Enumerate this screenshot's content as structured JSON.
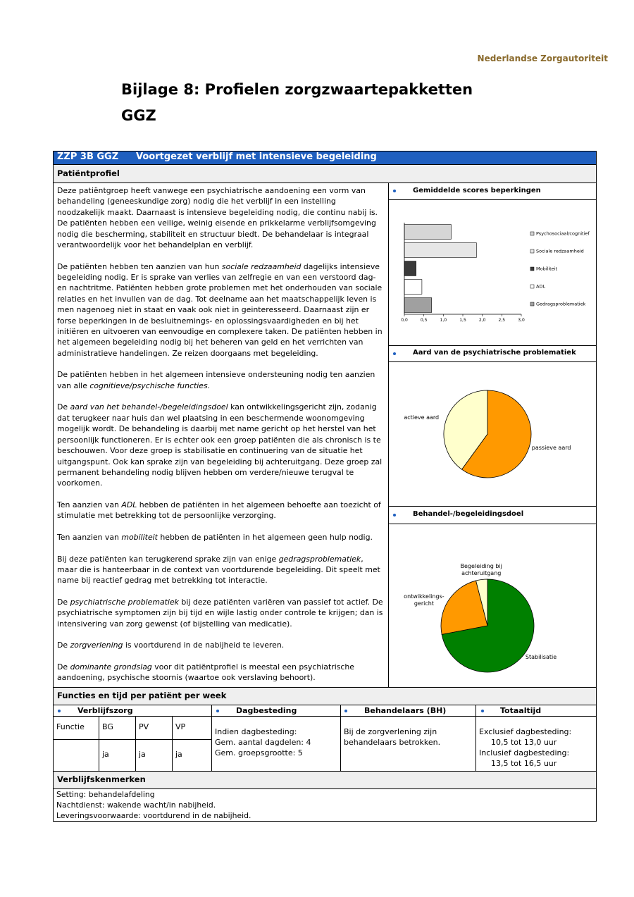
{
  "header": {
    "org": "Nederlandse Zorgautoriteit",
    "title": "Bijlage 8: Profielen zorgzwaartepakketten",
    "subtitle": "GGZ"
  },
  "profile": {
    "code": "ZZP 3B GGZ",
    "name": "Voortgezet verblijf met intensieve begeleiding",
    "section": "Patiëntprofiel",
    "paragraphs": [
      [
        "Deze patiëntgroep heeft vanwege een psychiatrische aandoening een vorm van behandeling (geneeskundige zorg) nodig die het verblijf in een instelling noodzakelijk maakt. Daarnaast is intensieve begeleiding nodig, die continu nabij is. De patiënten hebben een veilige, weinig eisende en prikkelarme verblijfsomgeving nodig die bescherming, stabiliteit en structuur biedt. De behandelaar is integraal verantwoordelijk voor het behandelplan en verblijf."
      ],
      [
        "De patiënten hebben ten aanzien van hun ",
        {
          "em": "sociale redzaamheid"
        },
        " dagelijks intensieve begeleiding nodig. Er is sprake van verlies van zelfregie en van een verstoord dag- en nachtritme. Patiënten hebben grote problemen met het onderhouden van sociale relaties en het invullen van de dag. Tot deelname aan het maatschappelijk leven is men nagenoeg niet in staat en vaak ook niet in geinteresseerd. Daarnaast zijn er forse beperkingen in de besluitnemings- en oplossingsvaardigheden en bij het initiëren en uitvoeren van eenvoudige en complexere taken. De patiënten hebben in het algemeen begeleiding nodig bij het beheren van geld en het verrichten van administratieve handelingen. Ze reizen doorgaans met begeleiding."
      ],
      [
        "De patiënten hebben in het algemeen intensieve ondersteuning nodig ten aanzien van alle ",
        {
          "em": "cognitieve/psychische functies"
        },
        "."
      ],
      [
        "De ",
        {
          "em": "aard van het behandel-/begeleidingsdoel"
        },
        " kan ontwikkelingsgericht zijn, zodanig dat terugkeer naar huis dan wel plaatsing in een beschermende woonomgeving mogelijk wordt. De behandeling is daarbij met name gericht op het herstel van het persoonlijk functioneren. Er is echter ook een groep patiënten die als chronisch is te beschouwen. Voor deze groep is stabilisatie en continuering van de situatie het uitgangspunt. Ook kan sprake zijn van begeleiding bij achteruitgang. Deze groep zal permanent behandeling nodig blijven hebben om verdere/nieuwe terugval te voorkomen."
      ],
      [
        "Ten aanzien van ",
        {
          "em": "ADL"
        },
        " hebben de patiënten in het algemeen behoefte aan toezicht of stimulatie met betrekking tot de persoonlijke verzorging."
      ],
      [
        "Ten aanzien van ",
        {
          "em": "mobiliteit"
        },
        " hebben de patiënten in het algemeen geen hulp nodig."
      ],
      [
        "Bij deze patiënten kan terugkerend sprake zijn van enige ",
        {
          "em": "gedragsproblematiek"
        },
        ", maar die is hanteerbaar in de context van voortdurende begeleiding. Dit speelt met name bij reactief gedrag met betrekking tot interactie."
      ],
      [
        "De ",
        {
          "em": "psychiatrische problematiek"
        },
        " bij deze patiënten variëren van passief tot actief. De psychiatrische symptomen zijn bij tijd en wijle lastig onder controle te krijgen; dan is intensivering van zorg gewenst (of bijstelling van medicatie)."
      ],
      [
        "De ",
        {
          "em": "zorgverlening"
        },
        " is voortdurend in de nabijheid te leveren."
      ],
      [
        "De ",
        {
          "em": "dominante grondslag"
        },
        " voor dit patiëntprofiel is meestal een psychiatrische aandoening, psychische stoornis (waartoe ook verslaving behoort)."
      ]
    ]
  },
  "chart_data": [
    {
      "type": "bar",
      "orientation": "horizontal",
      "title": "Gemiddelde scores beperkingen",
      "categories": [
        "Psychosociaal/cognitief",
        "Sociale redzaamheid",
        "Mobiliteit",
        "ADL",
        "Gedragsproblematiek"
      ],
      "values": [
        1.2,
        1.85,
        0.3,
        0.45,
        0.7
      ],
      "colors": [
        "#d6d6d6",
        "#e6e6e6",
        "#3a3a3a",
        "#ffffff",
        "#a0a0a0"
      ],
      "xlim": [
        0,
        3
      ],
      "xticks": [
        {
          "value": 0,
          "label": "0,0"
        },
        {
          "value": 0.5,
          "label": "0,5"
        },
        {
          "value": 1,
          "label": "1,0"
        },
        {
          "value": 1.5,
          "label": "1,5"
        },
        {
          "value": 2,
          "label": "2,0"
        },
        {
          "value": 2.5,
          "label": "2,5"
        },
        {
          "value": 3,
          "label": "3,0"
        }
      ],
      "legend": "right"
    },
    {
      "type": "pie",
      "title": "Aard van de psychiatrische problematiek",
      "categories": [
        "passieve aard",
        "actieve aard"
      ],
      "values": [
        60,
        40
      ],
      "colors": [
        "#ff9900",
        "#ffffcc"
      ]
    },
    {
      "type": "pie",
      "title": "Behandel-/begeleidingsdoel",
      "categories": [
        "Stabilisatie",
        "ontwikkelings-gericht",
        "Begeleiding bij achteruitgang"
      ],
      "values": [
        72,
        24,
        4
      ],
      "colors": [
        "#008000",
        "#ff9900",
        "#ffffcc"
      ]
    }
  ],
  "functions": {
    "title": "Functies en tijd per patiënt per week",
    "headers": [
      "Verblijfszorg",
      "Dagbesteding",
      "Behandelaars (BH)",
      "Totaaltijd"
    ],
    "verblijfszorg": {
      "columns": [
        "Functie",
        "BG",
        "PV",
        "VP"
      ],
      "values": [
        "ja",
        "ja",
        "ja"
      ]
    },
    "dagbesteding": [
      "Indien dagbesteding:",
      "Gem. aantal dagdelen: 4",
      "Gem. groepsgrootte: 5"
    ],
    "behandelaars": [
      "Bij de zorgverlening zijn behandelaars betrokken."
    ],
    "totaaltijd": [
      "Exclusief dagbesteding:",
      "10,5 tot 13,0 uur",
      "Inclusief dagbesteding:",
      "13,5 tot 16,5 uur"
    ]
  },
  "residence": {
    "title": "Verblijfskenmerken",
    "lines": [
      "Setting: behandelafdeling",
      "Nachtdienst: wakende wacht/in nabijheid.",
      "Leveringsvoorwaarde: voortdurend in de nabijheid."
    ]
  }
}
